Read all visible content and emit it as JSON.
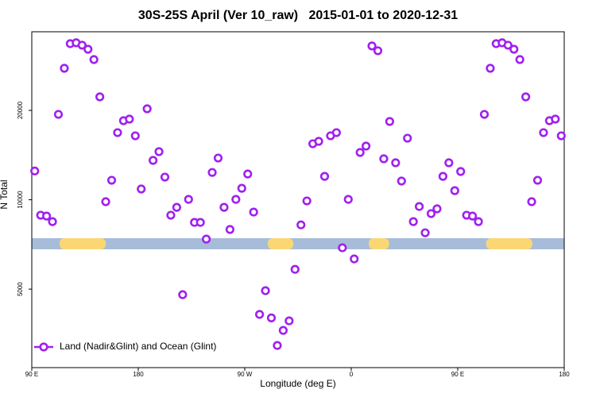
{
  "chart_data": {
    "type": "scatter",
    "title": "30S-25S April (Ver 10_raw)   2015-01-01 to 2020-12-31",
    "x_label": "Longitude (deg E)",
    "y_label": "N Total",
    "log_scale_y": true,
    "legend": "bottom-left",
    "xlim": [
      90,
      540
    ],
    "ylim": [
      2720,
      36800
    ],
    "xticks": [
      {
        "value": 90,
        "label": "90 E"
      },
      180,
      {
        "value": 270,
        "label": "90 W"
      },
      {
        "value": 360,
        "label": "0"
      },
      {
        "value": 450,
        "label": "90 E"
      },
      {
        "value": 540,
        "label": "180"
      }
    ],
    "yticks": [
      5000,
      10000,
      20000
    ],
    "ocean_color": "#a7bcd9",
    "land_color": "#fbd774",
    "land_ranges": [
      [
        113.5,
        152.5
      ],
      [
        289.5,
        311
      ],
      [
        374.8,
        392
      ],
      [
        474,
        513
      ]
    ],
    "x": [
      92.5,
      97.5,
      102.5,
      107.5,
      112.5,
      117.5,
      122.5,
      127.5,
      132.5,
      137.5,
      142.5,
      147.5,
      152.5,
      157.5,
      162.5,
      167.5,
      172.5,
      177.5,
      182.5,
      187.5,
      192.5,
      197.5,
      202.5,
      207.5,
      212.5,
      217.5,
      222.5,
      227.5,
      232.5,
      237.5,
      242.5,
      247.5,
      252.5,
      257.5,
      262.5,
      267.5,
      272.5,
      277.5,
      282.5,
      287.5,
      292.5,
      297.5,
      302.5,
      307.5,
      312.5,
      317.5,
      322.5,
      327.5,
      332.5,
      337.5,
      342.5,
      347.5,
      352.5,
      357.5,
      362.5,
      367.5,
      372.5,
      377.5,
      382.5,
      387.5,
      392.5,
      397.5,
      402.5,
      407.5,
      412.5,
      417.5,
      422.5,
      427.5,
      432.5,
      437.5,
      442.5,
      447.5,
      452.5,
      457.5,
      462.5,
      467.5,
      472.5,
      477.5,
      482.5,
      487.5,
      492.5,
      497.5,
      502.5,
      507.5,
      512.5,
      517.5,
      522.5,
      527.5,
      532.5,
      537.5
    ],
    "series": [
      {
        "name": "Land (Nadir&Glint) and Ocean (Glint)",
        "color": "#a020f0",
        "values": [
          12500,
          8870,
          8810,
          8440,
          19390,
          27720,
          33560,
          33780,
          33160,
          32140,
          29660,
          22210,
          9850,
          11630,
          16830,
          18460,
          18690,
          16420,
          10870,
          20250,
          13570,
          14520,
          11920,
          8870,
          9430,
          4790,
          10030,
          8390,
          8390,
          7370,
          12360,
          13820,
          9430,
          7940,
          10030,
          10930,
          12210,
          9090,
          4110,
          4940,
          4000,
          3230,
          3630,
          3910,
          5830,
          8230,
          9910,
          15440,
          15730,
          11990,
          16420,
          16830,
          6890,
          10030,
          6320,
          14430,
          15160,
          32960,
          31760,
          13740,
          18350,
          13320,
          11560,
          16120,
          8440,
          9490,
          7740,
          8980,
          9320,
          11990,
          13320,
          10730,
          12450,
          8870,
          8810,
          8440,
          19390,
          27720,
          33560,
          33780,
          33160,
          32140,
          29660,
          22210,
          9850,
          11630,
          16830,
          18460,
          18690,
          16420
        ]
      }
    ]
  }
}
